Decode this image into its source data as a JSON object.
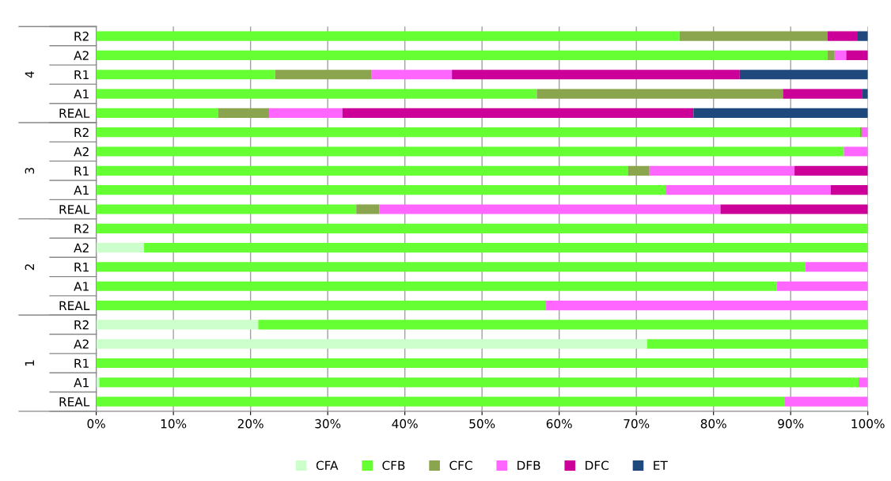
{
  "chart_data": {
    "type": "bar",
    "orientation": "horizontal",
    "stacked": true,
    "categories": [
      "R2",
      "A2",
      "R1",
      "A1",
      "REAL",
      "R2",
      "A2",
      "R1",
      "A1",
      "REAL",
      "R2",
      "A2",
      "R1",
      "A1",
      "REAL",
      "R2",
      "A2",
      "R1",
      "A1",
      "REAL"
    ],
    "annotations": [
      "4",
      "3",
      "2",
      "1"
    ],
    "series": [
      {
        "name": "CFA",
        "color": "#ccffcc",
        "values": [
          0,
          0,
          0,
          0,
          0,
          0,
          0,
          0,
          0,
          0,
          0,
          6.2,
          0,
          0,
          0,
          21.0,
          71.4,
          0,
          0.4,
          0
        ]
      },
      {
        "name": "CFB",
        "color": "#66ff33",
        "values": [
          75.6,
          94.8,
          23.2,
          57.1,
          15.8,
          99.0,
          96.9,
          68.9,
          73.8,
          33.7,
          100,
          93.8,
          91.9,
          88.2,
          58.3,
          79.0,
          28.6,
          100,
          98.4,
          89.2
        ]
      },
      {
        "name": "CFC",
        "color": "#8ba54e",
        "values": [
          19.2,
          0.9,
          12.5,
          31.9,
          6.6,
          0.2,
          0,
          2.8,
          0,
          3.0,
          0,
          0,
          0,
          0,
          0,
          0,
          0,
          0,
          0,
          0
        ]
      },
      {
        "name": "DFB",
        "color": "#ff66ff",
        "values": [
          0,
          1.5,
          10.4,
          0,
          9.5,
          0.8,
          3.1,
          18.8,
          21.4,
          44.2,
          0,
          0,
          8.1,
          11.8,
          41.7,
          0,
          0,
          0,
          1.2,
          10.8
        ]
      },
      {
        "name": "DFC",
        "color": "#cc0099",
        "values": [
          3.8,
          2.8,
          37.3,
          10.3,
          45.5,
          0,
          0,
          9.5,
          4.8,
          19.1,
          0,
          0,
          0,
          0,
          0,
          0,
          0,
          0,
          0,
          0
        ]
      },
      {
        "name": "ET",
        "color": "#1f497d",
        "values": [
          1.4,
          0,
          16.6,
          0.7,
          22.6,
          0,
          0,
          0,
          0,
          0,
          0,
          0,
          0,
          0,
          0,
          0,
          0,
          0,
          0,
          0
        ]
      }
    ],
    "xlim": [
      0,
      100
    ],
    "xticks": [
      {
        "value": 0,
        "label": "0%"
      },
      {
        "value": 10,
        "label": "10%"
      },
      {
        "value": 20,
        "label": "20%"
      },
      {
        "value": 30,
        "label": "30%"
      },
      {
        "value": 40,
        "label": "40%"
      },
      {
        "value": 50,
        "label": "50%"
      },
      {
        "value": 60,
        "label": "60%"
      },
      {
        "value": 70,
        "label": "70%"
      },
      {
        "value": 80,
        "label": "80%"
      },
      {
        "value": 90,
        "label": "90%"
      },
      {
        "value": 100,
        "label": "100%"
      }
    ],
    "grid": "x",
    "legend": "bottom"
  }
}
